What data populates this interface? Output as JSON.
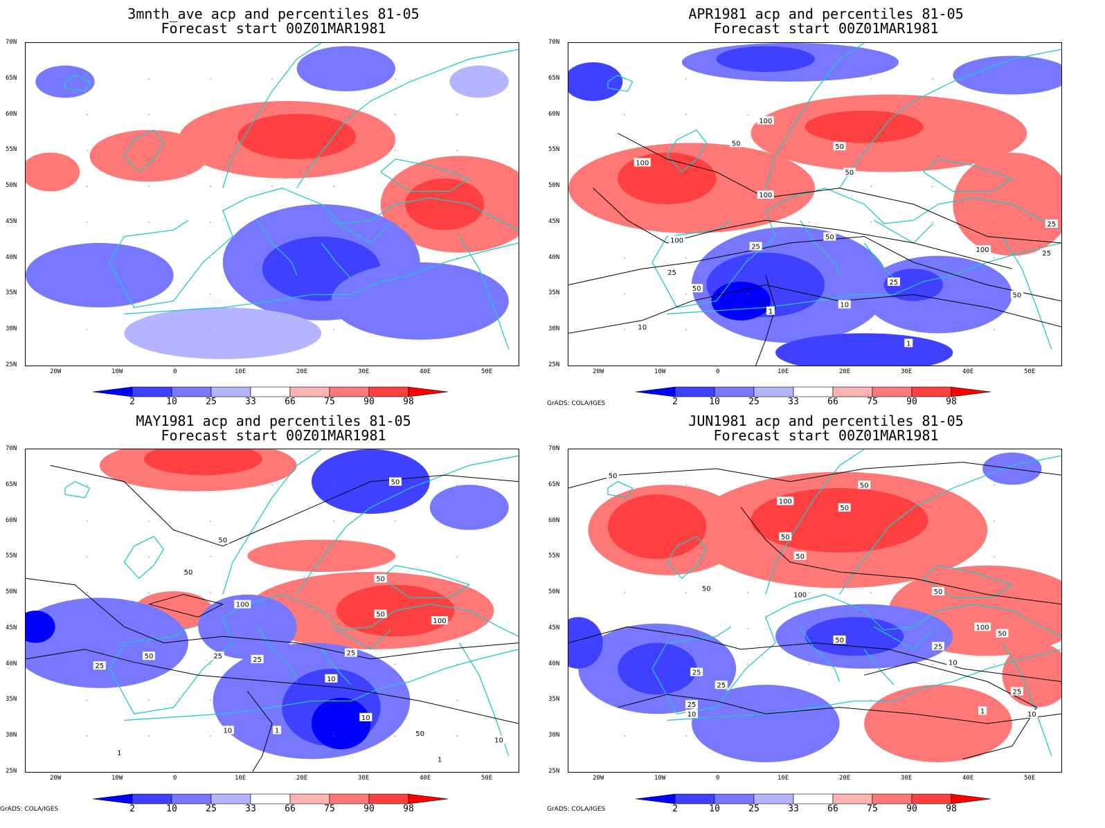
{
  "panels": [
    {
      "id": "p1",
      "title_line1": "3mnth_ave acp and percentiles 81-05",
      "title_line2": "Forecast start 00Z01MAR1981",
      "contour_labels": [],
      "credit": ""
    },
    {
      "id": "p2",
      "title_line1": "APR1981 acp and percentiles 81-05",
      "title_line2": "Forecast start 00Z01MAR1981",
      "contour_labels": [
        "100",
        "50",
        "100",
        "50",
        "100",
        "50",
        "100",
        "50",
        "25",
        "10",
        "1",
        "25",
        "50",
        "10",
        "25",
        "1",
        "100",
        "25",
        "25",
        "50"
      ],
      "credit": "GrADS: COLA/IGES"
    },
    {
      "id": "p3",
      "title_line1": "MAY1981 acp and percentiles 81-05",
      "title_line2": "Forecast start 00Z01MAR1981",
      "contour_labels": [
        "50",
        "50",
        "50",
        "100",
        "50",
        "100",
        "50",
        "25",
        "25",
        "50",
        "25",
        "10",
        "25",
        "10",
        "1",
        "10",
        "1",
        "50",
        "10",
        "1"
      ],
      "credit": "GrADS: COLA/IGES"
    },
    {
      "id": "p4",
      "title_line1": "JUN1981 acp and percentiles 81-05",
      "title_line2": "Forecast start 00Z01MAR1981",
      "contour_labels": [
        "50",
        "100",
        "50",
        "50",
        "50",
        "50",
        "100",
        "50",
        "50",
        "50",
        "25",
        "10",
        "25",
        "25",
        "25",
        "10",
        "25",
        "10",
        "1",
        "100",
        "50"
      ],
      "credit": "GrADS: COLA/IGES"
    }
  ],
  "lat_ticks": [
    "70N",
    "65N",
    "60N",
    "55N",
    "50N",
    "45N",
    "40N",
    "35N",
    "30N",
    "25N"
  ],
  "lon_ticks": [
    "20W",
    "10W",
    "0",
    "10E",
    "20E",
    "30E",
    "40E",
    "50E"
  ],
  "colorbar": {
    "labels": [
      "2",
      "10",
      "25",
      "33",
      "66",
      "75",
      "90",
      "98"
    ],
    "colors": [
      "#0000ff",
      "#4040ff",
      "#7878ff",
      "#b4b4ff",
      "#ffffff",
      "#ffb4b4",
      "#ff7878",
      "#ff4040",
      "#ff0000"
    ]
  },
  "colors": {
    "coastline": "#20c8c8",
    "contour": "#000000"
  }
}
